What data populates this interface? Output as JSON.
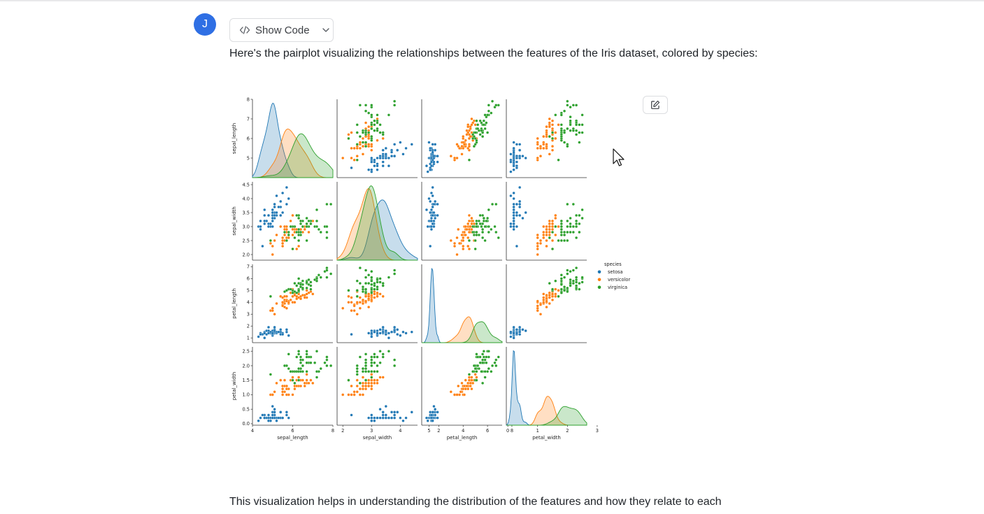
{
  "chat": {
    "avatar_letter": "J",
    "show_code_label": "Show Code",
    "intro_text": "Here's the pairplot visualizing the relationships between the features of the Iris dataset, colored by species:",
    "outro_text": "This visualization helps in understanding the distribution of the features and how they relate to each"
  },
  "icons": {
    "code": "code-icon",
    "chevron": "chevron-down-icon",
    "edit": "edit-icon",
    "cursor": "mouse-cursor-icon"
  },
  "chart_data": {
    "type": "scatter",
    "variables": [
      "sepal_length",
      "sepal_width",
      "petal_length",
      "petal_width"
    ],
    "axis_ranges": {
      "sepal_length": [
        4,
        8
      ],
      "sepal_width": [
        1.8,
        4.6
      ],
      "petal_length": [
        0.6,
        7.2
      ],
      "petal_width": [
        -0.05,
        2.65
      ]
    },
    "ticks": {
      "sepal_length": {
        "row": [
          "5",
          "6",
          "7",
          "8"
        ],
        "col": [
          "4",
          "6",
          "8"
        ]
      },
      "sepal_width": {
        "row": [
          "2.0",
          "2.5",
          "3.0",
          "3.5",
          "4.0",
          "4.5"
        ],
        "col": [
          "2",
          "3",
          "4",
          "5"
        ]
      },
      "petal_length": {
        "row": [
          "1",
          "2",
          "3",
          "4",
          "5",
          "6",
          "7"
        ],
        "col": [
          "2",
          "4",
          "6",
          "8"
        ]
      },
      "petal_width": {
        "row": [
          "0.0",
          "0.5",
          "1.0",
          "1.5",
          "2.0",
          "2.5"
        ],
        "col": [
          "0",
          "1",
          "2",
          "3"
        ]
      }
    },
    "diag": "kde",
    "legend": {
      "title": "species",
      "position": "right",
      "entries": [
        {
          "label": "setosa",
          "color": "#1f77b4"
        },
        {
          "label": "versicolor",
          "color": "#ff7f0e"
        },
        {
          "label": "virginica",
          "color": "#2ca02c"
        }
      ]
    },
    "series": [
      {
        "name": "setosa",
        "color": "#1f77b4",
        "points": [
          [
            5.1,
            3.5,
            1.4,
            0.2
          ],
          [
            4.9,
            3.0,
            1.4,
            0.2
          ],
          [
            4.7,
            3.2,
            1.3,
            0.2
          ],
          [
            4.6,
            3.1,
            1.5,
            0.2
          ],
          [
            5.0,
            3.6,
            1.4,
            0.2
          ],
          [
            5.4,
            3.9,
            1.7,
            0.4
          ],
          [
            4.6,
            3.4,
            1.4,
            0.3
          ],
          [
            5.0,
            3.4,
            1.5,
            0.2
          ],
          [
            4.4,
            2.9,
            1.4,
            0.2
          ],
          [
            4.9,
            3.1,
            1.5,
            0.1
          ],
          [
            5.4,
            3.7,
            1.5,
            0.2
          ],
          [
            4.8,
            3.4,
            1.6,
            0.2
          ],
          [
            4.8,
            3.0,
            1.4,
            0.1
          ],
          [
            4.3,
            3.0,
            1.1,
            0.1
          ],
          [
            5.8,
            4.0,
            1.2,
            0.2
          ],
          [
            5.7,
            4.4,
            1.5,
            0.4
          ],
          [
            5.4,
            3.9,
            1.3,
            0.4
          ],
          [
            5.1,
            3.5,
            1.4,
            0.3
          ],
          [
            5.7,
            3.8,
            1.7,
            0.3
          ],
          [
            5.1,
            3.8,
            1.5,
            0.3
          ],
          [
            5.4,
            3.4,
            1.7,
            0.2
          ],
          [
            5.1,
            3.7,
            1.5,
            0.4
          ],
          [
            4.6,
            3.6,
            1.0,
            0.2
          ],
          [
            5.1,
            3.3,
            1.7,
            0.5
          ],
          [
            4.8,
            3.4,
            1.9,
            0.2
          ],
          [
            5.0,
            3.0,
            1.6,
            0.2
          ],
          [
            5.0,
            3.4,
            1.6,
            0.4
          ],
          [
            5.2,
            3.5,
            1.5,
            0.2
          ],
          [
            5.2,
            3.4,
            1.4,
            0.2
          ],
          [
            4.7,
            3.2,
            1.6,
            0.2
          ],
          [
            4.8,
            3.1,
            1.6,
            0.2
          ],
          [
            5.4,
            3.4,
            1.5,
            0.4
          ],
          [
            5.2,
            4.1,
            1.5,
            0.1
          ],
          [
            5.5,
            4.2,
            1.4,
            0.2
          ],
          [
            4.9,
            3.1,
            1.5,
            0.2
          ],
          [
            5.0,
            3.2,
            1.2,
            0.2
          ],
          [
            5.5,
            3.5,
            1.3,
            0.2
          ],
          [
            4.4,
            3.0,
            1.3,
            0.2
          ],
          [
            5.1,
            3.4,
            1.5,
            0.2
          ],
          [
            5.0,
            3.5,
            1.3,
            0.3
          ],
          [
            4.5,
            2.3,
            1.3,
            0.3
          ],
          [
            4.4,
            3.2,
            1.3,
            0.2
          ],
          [
            5.0,
            3.5,
            1.6,
            0.6
          ],
          [
            5.1,
            3.8,
            1.9,
            0.4
          ],
          [
            4.8,
            3.0,
            1.4,
            0.3
          ],
          [
            5.1,
            3.8,
            1.6,
            0.2
          ],
          [
            4.6,
            3.2,
            1.4,
            0.2
          ],
          [
            5.3,
            3.7,
            1.5,
            0.2
          ],
          [
            5.0,
            3.3,
            1.4,
            0.2
          ]
        ]
      },
      {
        "name": "versicolor",
        "color": "#ff7f0e",
        "points": [
          [
            7.0,
            3.2,
            4.7,
            1.4
          ],
          [
            6.4,
            3.2,
            4.5,
            1.5
          ],
          [
            6.9,
            3.1,
            4.9,
            1.5
          ],
          [
            5.5,
            2.3,
            4.0,
            1.3
          ],
          [
            6.5,
            2.8,
            4.6,
            1.5
          ],
          [
            5.7,
            2.8,
            4.5,
            1.3
          ],
          [
            6.3,
            3.3,
            4.7,
            1.6
          ],
          [
            4.9,
            2.4,
            3.3,
            1.0
          ],
          [
            6.6,
            2.9,
            4.6,
            1.3
          ],
          [
            5.2,
            2.7,
            3.9,
            1.4
          ],
          [
            5.0,
            2.0,
            3.5,
            1.0
          ],
          [
            5.9,
            3.0,
            4.2,
            1.5
          ],
          [
            6.0,
            2.2,
            4.0,
            1.0
          ],
          [
            6.1,
            2.9,
            4.7,
            1.4
          ],
          [
            5.6,
            2.9,
            3.6,
            1.3
          ],
          [
            6.7,
            3.1,
            4.4,
            1.4
          ],
          [
            5.6,
            3.0,
            4.5,
            1.5
          ],
          [
            5.8,
            2.7,
            4.1,
            1.0
          ],
          [
            6.2,
            2.2,
            4.5,
            1.5
          ],
          [
            5.6,
            2.5,
            3.9,
            1.1
          ],
          [
            5.9,
            3.2,
            4.8,
            1.8
          ],
          [
            6.1,
            2.8,
            4.0,
            1.3
          ],
          [
            6.3,
            2.5,
            4.9,
            1.5
          ],
          [
            6.1,
            2.8,
            4.7,
            1.2
          ],
          [
            6.4,
            2.9,
            4.3,
            1.3
          ],
          [
            6.6,
            3.0,
            4.4,
            1.4
          ],
          [
            6.8,
            2.8,
            4.8,
            1.4
          ],
          [
            6.7,
            3.0,
            5.0,
            1.7
          ],
          [
            6.0,
            2.9,
            4.5,
            1.5
          ],
          [
            5.7,
            2.6,
            3.5,
            1.0
          ],
          [
            5.5,
            2.4,
            3.8,
            1.1
          ],
          [
            5.5,
            2.4,
            3.7,
            1.0
          ],
          [
            5.8,
            2.7,
            3.9,
            1.2
          ],
          [
            6.0,
            2.7,
            5.1,
            1.6
          ],
          [
            5.4,
            3.0,
            4.5,
            1.5
          ],
          [
            6.0,
            3.4,
            4.5,
            1.6
          ],
          [
            6.7,
            3.1,
            4.7,
            1.5
          ],
          [
            6.3,
            2.3,
            4.4,
            1.3
          ],
          [
            5.6,
            3.0,
            4.1,
            1.3
          ],
          [
            5.5,
            2.5,
            4.0,
            1.3
          ],
          [
            5.5,
            2.6,
            4.4,
            1.2
          ],
          [
            6.1,
            3.0,
            4.6,
            1.4
          ],
          [
            5.8,
            2.6,
            4.0,
            1.2
          ],
          [
            5.0,
            2.3,
            3.3,
            1.0
          ],
          [
            5.6,
            2.7,
            4.2,
            1.3
          ],
          [
            5.7,
            3.0,
            4.2,
            1.2
          ],
          [
            5.7,
            2.9,
            4.2,
            1.3
          ],
          [
            6.2,
            2.9,
            4.3,
            1.3
          ],
          [
            5.1,
            2.5,
            3.0,
            1.1
          ],
          [
            5.7,
            2.8,
            4.1,
            1.3
          ]
        ]
      },
      {
        "name": "virginica",
        "color": "#2ca02c",
        "points": [
          [
            6.3,
            3.3,
            6.0,
            2.5
          ],
          [
            5.8,
            2.7,
            5.1,
            1.9
          ],
          [
            7.1,
            3.0,
            5.9,
            2.1
          ],
          [
            6.3,
            2.9,
            5.6,
            1.8
          ],
          [
            6.5,
            3.0,
            5.8,
            2.2
          ],
          [
            7.6,
            3.0,
            6.6,
            2.1
          ],
          [
            4.9,
            2.5,
            4.5,
            1.7
          ],
          [
            7.3,
            2.9,
            6.3,
            1.8
          ],
          [
            6.7,
            2.5,
            5.8,
            1.8
          ],
          [
            7.2,
            3.6,
            6.1,
            2.5
          ],
          [
            6.5,
            3.2,
            5.1,
            2.0
          ],
          [
            6.4,
            2.7,
            5.3,
            1.9
          ],
          [
            6.8,
            3.0,
            5.5,
            2.1
          ],
          [
            5.7,
            2.5,
            5.0,
            2.0
          ],
          [
            5.8,
            2.8,
            5.1,
            2.4
          ],
          [
            6.4,
            3.2,
            5.3,
            2.3
          ],
          [
            6.5,
            3.0,
            5.5,
            1.8
          ],
          [
            7.7,
            3.8,
            6.7,
            2.2
          ],
          [
            7.7,
            2.6,
            6.9,
            2.3
          ],
          [
            6.0,
            2.2,
            5.0,
            1.5
          ],
          [
            6.9,
            3.2,
            5.7,
            2.3
          ],
          [
            5.6,
            2.8,
            4.9,
            2.0
          ],
          [
            7.7,
            2.8,
            6.7,
            2.0
          ],
          [
            6.3,
            2.7,
            4.9,
            1.8
          ],
          [
            6.7,
            3.3,
            5.7,
            2.1
          ],
          [
            7.2,
            3.2,
            6.0,
            1.8
          ],
          [
            6.2,
            2.8,
            4.8,
            1.8
          ],
          [
            6.1,
            3.0,
            4.9,
            1.8
          ],
          [
            6.4,
            2.8,
            5.6,
            2.1
          ],
          [
            7.2,
            3.0,
            5.8,
            1.6
          ],
          [
            7.4,
            2.8,
            6.1,
            1.9
          ],
          [
            7.9,
            3.8,
            6.4,
            2.0
          ],
          [
            6.4,
            2.8,
            5.6,
            2.2
          ],
          [
            6.3,
            2.8,
            5.1,
            1.5
          ],
          [
            6.1,
            2.6,
            5.6,
            1.4
          ],
          [
            7.7,
            3.0,
            6.1,
            2.3
          ],
          [
            6.3,
            3.4,
            5.6,
            2.4
          ],
          [
            6.4,
            3.1,
            5.5,
            1.8
          ],
          [
            6.0,
            3.0,
            4.8,
            1.8
          ],
          [
            6.9,
            3.1,
            5.4,
            2.1
          ],
          [
            6.7,
            3.1,
            5.6,
            2.4
          ],
          [
            6.9,
            3.1,
            5.1,
            2.3
          ],
          [
            6.8,
            3.2,
            5.9,
            2.3
          ],
          [
            6.7,
            3.3,
            5.7,
            2.5
          ],
          [
            6.7,
            3.0,
            5.2,
            2.3
          ],
          [
            6.3,
            2.5,
            5.0,
            1.9
          ],
          [
            6.5,
            3.0,
            5.2,
            2.0
          ],
          [
            6.2,
            3.4,
            5.4,
            2.3
          ],
          [
            5.9,
            3.0,
            5.1,
            1.8
          ]
        ]
      }
    ]
  }
}
